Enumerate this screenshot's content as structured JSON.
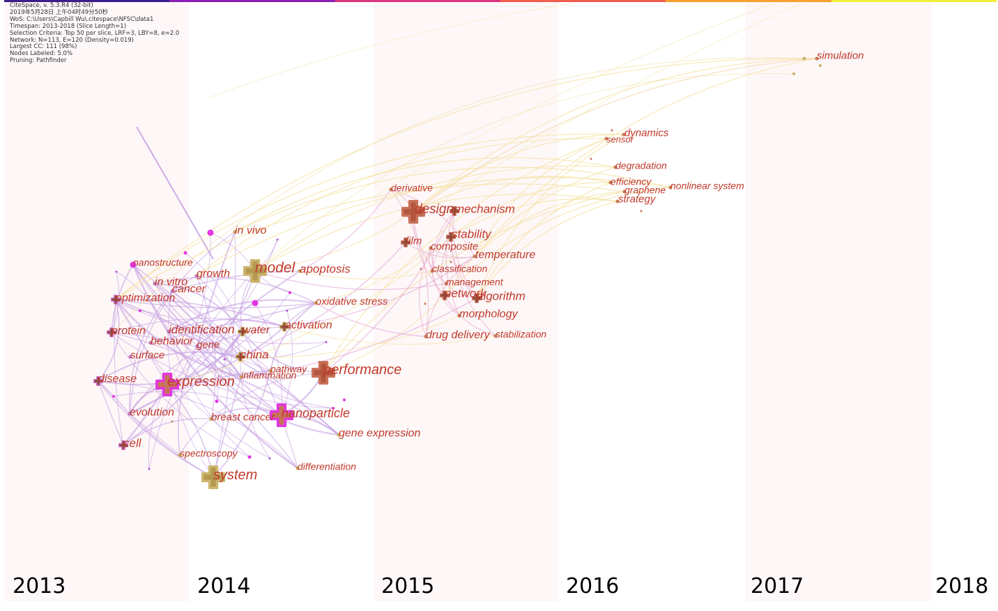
{
  "info_panel": {
    "lines": [
      "CiteSpace, v. 5.3.R4 (32-bit)",
      "2019年5月28日 上午04时49分50秒",
      "WoS: C:\\Users\\Capbill Wu\\.citespace\\NFSC\\data1",
      "Timespan: 2013-2018 (Slice Length=1)",
      "Selection Criteria: Top 50 per slice, LRF=3, LBY=8, e=2.0",
      "Network: N=113, E=120 (Density=0.019)",
      "Largest CC: 111 (98%)",
      "Nodes Labeled: 5.0%",
      "Pruning: Pathfinder"
    ]
  },
  "timeline": {
    "years": [
      "2013",
      "2014",
      "2015",
      "2016",
      "2017",
      "2018"
    ],
    "slice_colors": [
      "#3b1e8c",
      "#8a1fb5",
      "#d8367e",
      "#ef5d4f",
      "#f7a02f",
      "#f1ef3a"
    ],
    "band_colors": [
      "#fdf7f8",
      "#ffffff"
    ]
  },
  "colors": {
    "label": "#c0392b",
    "node_2013": "#e236e2",
    "node_2014": "#c9b16a",
    "node_2015": "#c8725a",
    "link_2013": "#c39ae0",
    "link_later": "#f6e3a6"
  },
  "keywords": [
    {
      "label": "simulation",
      "year": "2017",
      "size": 15
    },
    {
      "label": "dynamics",
      "year": "2016",
      "size": 15
    },
    {
      "label": "sensor",
      "year": "2016",
      "size": 13
    },
    {
      "label": "degradation",
      "year": "2016",
      "size": 14
    },
    {
      "label": "efficiency",
      "year": "2016",
      "size": 14
    },
    {
      "label": "graphene",
      "year": "2016",
      "size": 14
    },
    {
      "label": "nonlinear system",
      "year": "2016",
      "size": 14
    },
    {
      "label": "strategy",
      "year": "2016",
      "size": 15
    },
    {
      "label": "derivative",
      "year": "2015",
      "size": 14
    },
    {
      "label": "design",
      "year": "2015",
      "size": 19
    },
    {
      "label": "mechanism",
      "year": "2015",
      "size": 17
    },
    {
      "label": "stability",
      "year": "2015",
      "size": 17
    },
    {
      "label": "film",
      "year": "2015",
      "size": 15
    },
    {
      "label": "composite",
      "year": "2015",
      "size": 15
    },
    {
      "label": "temperature",
      "year": "2015",
      "size": 16
    },
    {
      "label": "classification",
      "year": "2015",
      "size": 14
    },
    {
      "label": "management",
      "year": "2015",
      "size": 14
    },
    {
      "label": "network",
      "year": "2015",
      "size": 17
    },
    {
      "label": "algorithm",
      "year": "2015",
      "size": 17
    },
    {
      "label": "morphology",
      "year": "2015",
      "size": 16
    },
    {
      "label": "drug delivery",
      "year": "2015",
      "size": 16
    },
    {
      "label": "stabilization",
      "year": "2015",
      "size": 14
    },
    {
      "label": "performance",
      "year": "2014",
      "size": 20
    },
    {
      "label": "in vivo",
      "year": "2014",
      "size": 16
    },
    {
      "label": "model",
      "year": "2014",
      "size": 21
    },
    {
      "label": "apoptosis",
      "year": "2014",
      "size": 17
    },
    {
      "label": "oxidative stress",
      "year": "2014",
      "size": 15
    },
    {
      "label": "activation",
      "year": "2014",
      "size": 16
    },
    {
      "label": "water",
      "year": "2014",
      "size": 16
    },
    {
      "label": "china",
      "year": "2014",
      "size": 17
    },
    {
      "label": "pathway",
      "year": "2014",
      "size": 14
    },
    {
      "label": "inflammation",
      "year": "2014",
      "size": 14
    },
    {
      "label": "nanoparticle",
      "year": "2014",
      "size": 18
    },
    {
      "label": "breast cancer",
      "year": "2014",
      "size": 15
    },
    {
      "label": "gene expression",
      "year": "2014",
      "size": 16
    },
    {
      "label": "differentiation",
      "year": "2014",
      "size": 14
    },
    {
      "label": "system",
      "year": "2014",
      "size": 20
    },
    {
      "label": "spectroscopy",
      "year": "2014",
      "size": 14
    },
    {
      "label": "nanostructure",
      "year": "2013",
      "size": 14
    },
    {
      "label": "growth",
      "year": "2013",
      "size": 16
    },
    {
      "label": "in vitro",
      "year": "2013",
      "size": 16
    },
    {
      "label": "cancer",
      "year": "2013",
      "size": 16
    },
    {
      "label": "optimization",
      "year": "2013",
      "size": 16
    },
    {
      "label": "protein",
      "year": "2013",
      "size": 16
    },
    {
      "label": "identification",
      "year": "2013",
      "size": 17
    },
    {
      "label": "behavior",
      "year": "2013",
      "size": 16
    },
    {
      "label": "gene",
      "year": "2013",
      "size": 15
    },
    {
      "label": "surface",
      "year": "2013",
      "size": 15
    },
    {
      "label": "disease",
      "year": "2013",
      "size": 16
    },
    {
      "label": "expression",
      "year": "2013",
      "size": 20
    },
    {
      "label": "evolution",
      "year": "2013",
      "size": 16
    },
    {
      "label": "cell",
      "year": "2013",
      "size": 17
    }
  ]
}
